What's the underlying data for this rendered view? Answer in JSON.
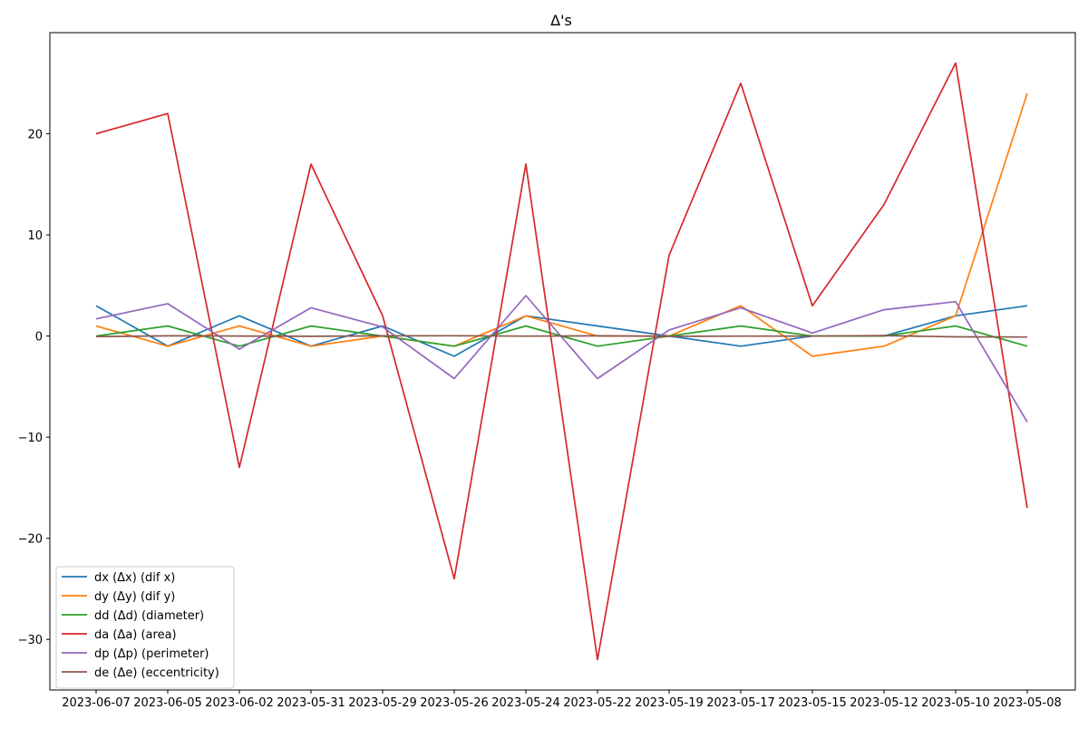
{
  "chart_data": {
    "type": "line",
    "title": "Δ's",
    "xlabel": "",
    "ylabel": "",
    "ylim": [
      -35,
      30
    ],
    "yticks": [
      -30,
      -20,
      -10,
      0,
      10,
      20
    ],
    "yticklabels": [
      "−30",
      "−20",
      "−10",
      "0",
      "10",
      "20"
    ],
    "grid": false,
    "legend_position": "lower-left",
    "categories": [
      "2023-06-07",
      "2023-06-05",
      "2023-06-02",
      "2023-05-31",
      "2023-05-29",
      "2023-05-26",
      "2023-05-24",
      "2023-05-22",
      "2023-05-19",
      "2023-05-17",
      "2023-05-15",
      "2023-05-12",
      "2023-05-10",
      "2023-05-08"
    ],
    "series": [
      {
        "name": "dx (Δx) (dif x)",
        "color": "#1f77b4",
        "values": [
          3,
          -1,
          2,
          -1,
          1,
          -2,
          2,
          1,
          0,
          -1,
          0,
          0,
          2,
          3
        ]
      },
      {
        "name": "dy (Δy) (dif y)",
        "color": "#ff7f0e",
        "values": [
          1,
          -1,
          1,
          -1,
          0,
          -1,
          2,
          0,
          0,
          3,
          -2,
          -1,
          2,
          24
        ]
      },
      {
        "name": "dd (Δd) (diameter)",
        "color": "#2ca02c",
        "values": [
          0,
          1,
          -1,
          1,
          0,
          -1,
          1,
          -1,
          0,
          1,
          0,
          0,
          1,
          -1
        ]
      },
      {
        "name": "da (Δa) (area)",
        "color": "#d62728",
        "values": [
          20,
          22,
          -13,
          17,
          2,
          -24,
          17,
          -32,
          8,
          25,
          3,
          13,
          27,
          -17
        ]
      },
      {
        "name": "dp (Δp) (perimeter)",
        "color": "#9467bd",
        "values": [
          1.7,
          3.2,
          -1.3,
          2.8,
          0.9,
          -4.2,
          4.0,
          -4.2,
          0.6,
          2.8,
          0.3,
          2.6,
          3.4,
          -8.5
        ]
      },
      {
        "name": "de (Δe) (eccentricity)",
        "color": "#8c564b",
        "values": [
          -0.05,
          0.02,
          0.0,
          -0.03,
          0.02,
          0.03,
          -0.01,
          0.02,
          -0.03,
          -0.01,
          -0.01,
          0.05,
          -0.08,
          -0.1
        ]
      }
    ]
  }
}
